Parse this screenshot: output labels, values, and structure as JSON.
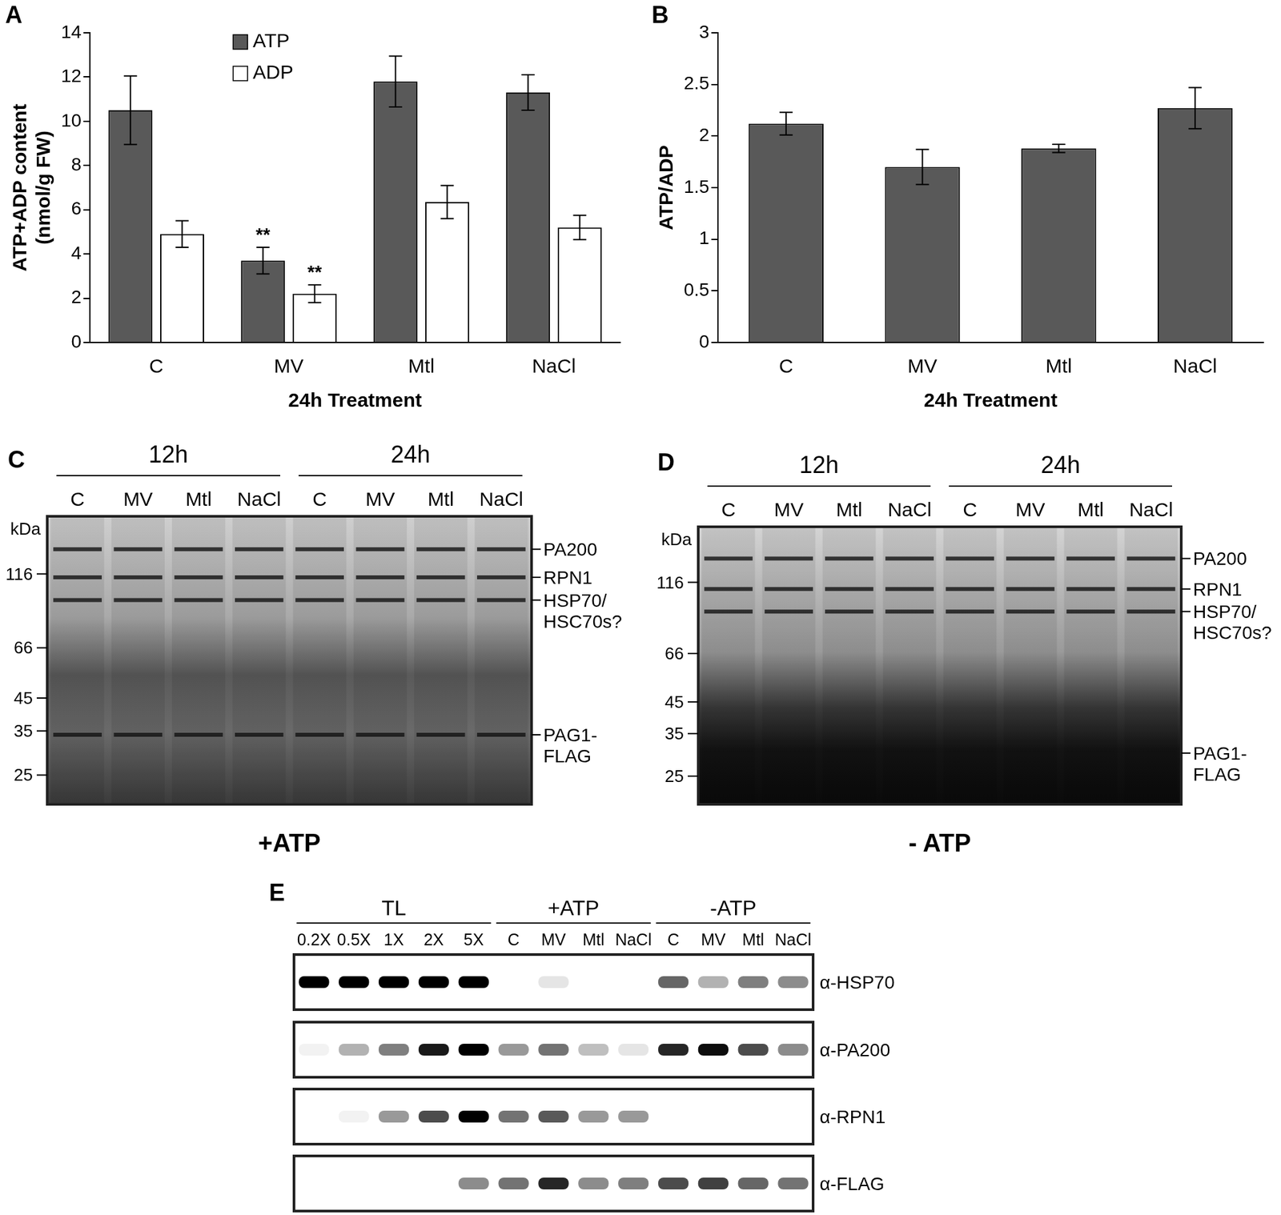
{
  "chart_data": [
    {
      "panel": "A",
      "type": "bar",
      "x_label": "24h Treatment",
      "y_label": [
        "ATP+ADP content",
        "(nmol/g FW)"
      ],
      "categories": [
        "C",
        "MV",
        "Mtl",
        "NaCl"
      ],
      "series": [
        {
          "name": "ATP",
          "color": "#595959",
          "values": [
            10.5,
            3.7,
            11.8,
            11.3
          ],
          "errors": [
            1.55,
            0.6,
            1.15,
            0.8
          ]
        },
        {
          "name": "ADP",
          "color": "#ffffff",
          "values": [
            4.9,
            2.2,
            6.35,
            5.2
          ],
          "errors": [
            0.6,
            0.4,
            0.75,
            0.55
          ]
        }
      ],
      "ylim": [
        0,
        14
      ],
      "yticks": [
        0,
        2,
        4,
        6,
        8,
        10,
        12,
        14
      ],
      "grid": false,
      "legend": "upper left",
      "annotations": [
        {
          "text": "**",
          "category": "MV",
          "series": "ATP"
        },
        {
          "text": "**",
          "category": "MV",
          "series": "ADP"
        }
      ]
    },
    {
      "panel": "B",
      "type": "bar",
      "x_label": "24h Treatment",
      "y_label": "ATP/ADP",
      "categories": [
        "C",
        "MV",
        "Mtl",
        "NaCl"
      ],
      "values": [
        2.12,
        1.7,
        1.88,
        2.27
      ],
      "errors": [
        0.11,
        0.17,
        0.04,
        0.2
      ],
      "color": "#595959",
      "ylim": [
        0,
        3
      ],
      "yticks": [
        0,
        0.5,
        1,
        1.5,
        2,
        2.5,
        3
      ],
      "grid": false
    }
  ],
  "gels": [
    {
      "panel": "C",
      "caption": "+ATP",
      "groups": [
        {
          "label": "12h",
          "lanes": [
            "C",
            "MV",
            "Mtl",
            "NaCl"
          ]
        },
        {
          "label": "24h",
          "lanes": [
            "C",
            "MV",
            "Mtl",
            "NaCl"
          ]
        }
      ],
      "marker_title": "kDa",
      "markers": [
        116,
        66,
        45,
        35,
        25
      ],
      "range": [
        180,
        20
      ],
      "bands": [
        {
          "label": [
            "PA200"
          ],
          "kDa": 140
        },
        {
          "label": [
            "RPN1"
          ],
          "kDa": 113
        },
        {
          "label": [
            "HSP70/",
            "HSC70s?"
          ],
          "kDa": 95
        },
        {
          "label": [
            "PAG1-",
            "FLAG"
          ],
          "kDa": 34
        }
      ]
    },
    {
      "panel": "D",
      "caption": "- ATP",
      "groups": [
        {
          "label": "12h",
          "lanes": [
            "C",
            "MV",
            "Mtl",
            "NaCl"
          ]
        },
        {
          "label": "24h",
          "lanes": [
            "C",
            "MV",
            "Mtl",
            "NaCl"
          ]
        }
      ],
      "marker_title": "kDa",
      "markers": [
        116,
        66,
        45,
        35,
        25
      ],
      "range": [
        180,
        20
      ],
      "bands": [
        {
          "label": [
            "PA200"
          ],
          "kDa": 140
        },
        {
          "label": [
            "RPN1"
          ],
          "kDa": 110
        },
        {
          "label": [
            "HSP70/",
            "HSC70s?"
          ],
          "kDa": 92
        },
        {
          "label": [
            "PAG1-",
            "FLAG"
          ],
          "kDa": 30
        }
      ]
    }
  ],
  "blot": {
    "panel": "E",
    "groups": [
      {
        "label": "TL",
        "lanes": [
          "0.2X",
          "0.5X",
          "1X",
          "2X",
          "5X"
        ]
      },
      {
        "label": "+ATP",
        "lanes": [
          "C",
          "MV",
          "Mtl",
          "NaCl"
        ]
      },
      {
        "label": "-ATP",
        "lanes": [
          "C",
          "MV",
          "Mtl",
          "NaCl"
        ]
      }
    ],
    "rows": [
      {
        "label": "α-HSP70",
        "intensity": [
          1,
          1,
          1,
          1,
          1,
          0,
          0.1,
          0,
          0,
          0.6,
          0.3,
          0.5,
          0.45
        ]
      },
      {
        "label": "α-PA200",
        "intensity": [
          0.05,
          0.3,
          0.5,
          0.9,
          1,
          0.4,
          0.55,
          0.25,
          0.1,
          0.85,
          0.95,
          0.7,
          0.45
        ]
      },
      {
        "label": "α-RPN1",
        "intensity": [
          0,
          0.05,
          0.4,
          0.7,
          1,
          0.55,
          0.65,
          0.4,
          0.4,
          0,
          0,
          0,
          0
        ]
      },
      {
        "label": "α-FLAG",
        "intensity": [
          0,
          0,
          0,
          0,
          0.45,
          0.55,
          0.85,
          0.45,
          0.5,
          0.7,
          0.75,
          0.6,
          0.55
        ]
      }
    ]
  }
}
